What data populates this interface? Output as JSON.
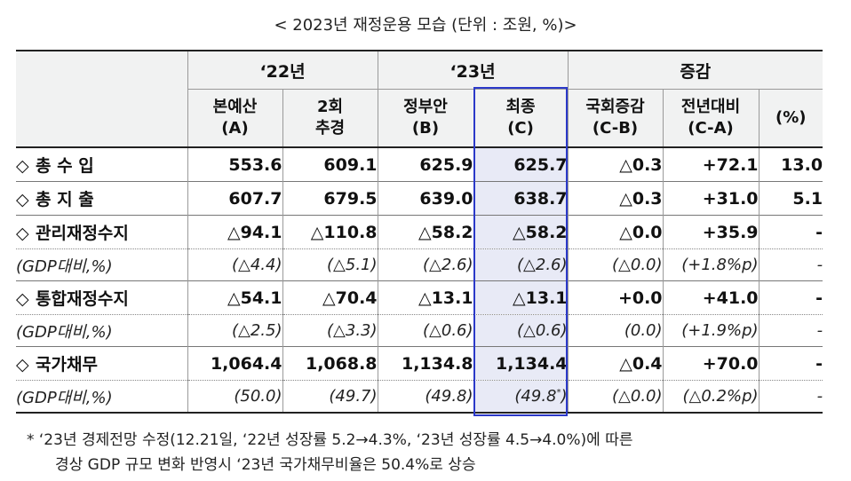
{
  "title": "< 2023년 재정운용 모습 (단위 : 조원, %)>",
  "header": {
    "group_22": "‘22년",
    "group_23": "‘23년",
    "group_change": "증감",
    "cols": [
      {
        "line1": "본예산",
        "line2": "(A)"
      },
      {
        "line1": "2회",
        "line2": "추경"
      },
      {
        "line1": "정부안",
        "line2": "(B)"
      },
      {
        "line1": "최종",
        "line2": "(C)"
      },
      {
        "line1": "국회증감",
        "line2": "(C-B)"
      },
      {
        "line1": "전년대비",
        "line2": "(C-A)"
      },
      {
        "line1": "(%)",
        "line2": ""
      }
    ]
  },
  "rows": [
    {
      "kind": "main",
      "diamond": "◇",
      "label": "총 수 입",
      "values": [
        "553.6",
        "609.1",
        "625.9",
        "625.7",
        "△0.3",
        "+72.1",
        "13.0"
      ]
    },
    {
      "kind": "main",
      "diamond": "◇",
      "label": "총 지 출",
      "values": [
        "607.7",
        "679.5",
        "639.0",
        "638.7",
        "△0.3",
        "+31.0",
        "5.1"
      ]
    },
    {
      "kind": "main",
      "diamond": "◇",
      "label": "관리재정수지",
      "values": [
        "△94.1",
        "△110.8",
        "△58.2",
        "△58.2",
        "△0.0",
        "+35.9",
        "-"
      ]
    },
    {
      "kind": "sub",
      "label": "(GDP대비,%)",
      "values": [
        "(△4.4)",
        "(△5.1)",
        "(△2.6)",
        "(△2.6)",
        "(△0.0)",
        "(+1.8%p)",
        "-"
      ]
    },
    {
      "kind": "main",
      "diamond": "◇",
      "label": "통합재정수지",
      "values": [
        "△54.1",
        "△70.4",
        "△13.1",
        "△13.1",
        "+0.0",
        "+41.0",
        "-"
      ]
    },
    {
      "kind": "sub",
      "label": "(GDP대비,%)",
      "values": [
        "(△2.5)",
        "(△3.3)",
        "(△0.6)",
        "(△0.6)",
        "(0.0)",
        "(+1.9%p)",
        "-"
      ]
    },
    {
      "kind": "main",
      "diamond": "◇",
      "label": "국가채무",
      "values": [
        "1,064.4",
        "1,068.8",
        "1,134.8",
        "1,134.4",
        "△0.4",
        "+70.0",
        "-"
      ]
    },
    {
      "kind": "sub",
      "label": "(GDP대비,%)",
      "values": [
        "(50.0)",
        "(49.7)",
        "(49.8)",
        "(49.8",
        "(△0.0)",
        "(△0.2%p)",
        "-"
      ],
      "c_suffix_sup": "*",
      "c_suffix_close": ")"
    }
  ],
  "note": {
    "line1": "* ‘23년 경제전망 수정(12.21일, ‘22년 성장률 5.2→4.3%, ‘23년 성장률 4.5→4.0%)에 따른",
    "line2": "경상 GDP 규모 변화 반영시 ‘23년 국가채무비율은 50.4%로 상승"
  },
  "colors": {
    "final_column_bg": "#e8eaf6",
    "final_column_border": "#2b39c9",
    "header_bg": "#f1f2f2"
  }
}
